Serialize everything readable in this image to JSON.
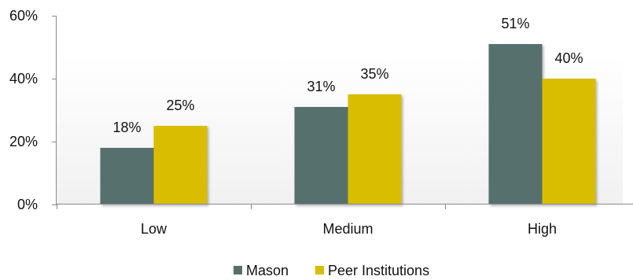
{
  "chart_data": {
    "type": "bar",
    "categories": [
      "Low",
      "Medium",
      "High"
    ],
    "series": [
      {
        "name": "Mason",
        "values": [
          18,
          31,
          51
        ],
        "color": "#566f6e"
      },
      {
        "name": "Peer Institutions",
        "values": [
          25,
          35,
          40
        ],
        "color": "#d8bd00"
      }
    ],
    "data_labels": [
      [
        "18%",
        "31%",
        "51%"
      ],
      [
        "25%",
        "35%",
        "40%"
      ]
    ],
    "y_ticks": [
      {
        "value": 0,
        "label": "0%"
      },
      {
        "value": 20,
        "label": "20%"
      },
      {
        "value": 40,
        "label": "40%"
      },
      {
        "value": 60,
        "label": "60%"
      }
    ],
    "ylim": [
      0,
      60
    ],
    "legend_position": "bottom",
    "grid": false,
    "title": "",
    "xlabel": "",
    "ylabel": ""
  }
}
